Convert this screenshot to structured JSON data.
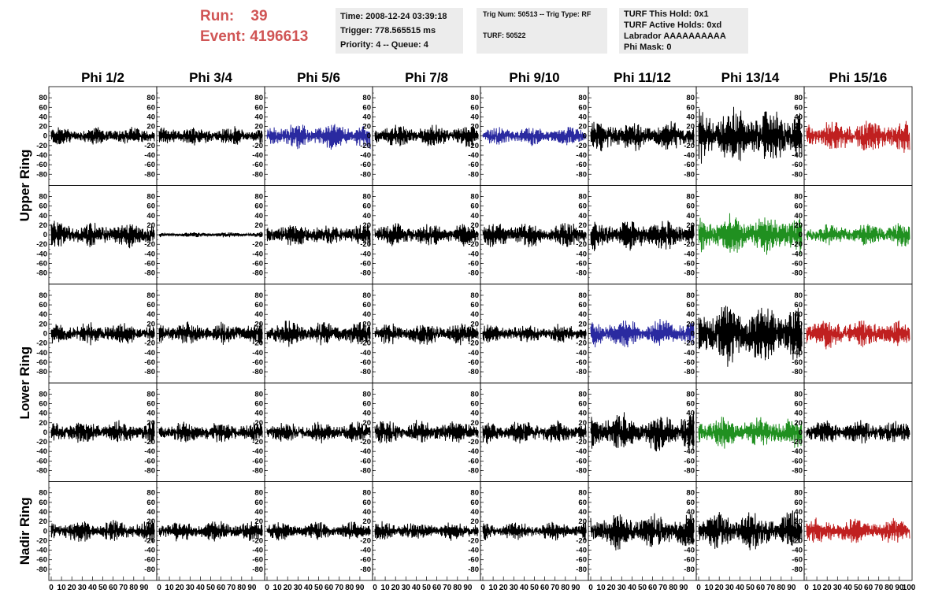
{
  "header": {
    "run_label": "Run:",
    "run_value": "39",
    "event_label": "Event:",
    "event_value": "4196613",
    "time_text": "Time: 2008-12-24 03:39:18",
    "trigger_text": "Trigger: 778.565515 ms",
    "priority_text": "Priority: 4 -- Queue: 4",
    "trig_num_text": "Trig Num: 50513 -- Trig Type: RF",
    "turf_text": "TURF: 50522",
    "turf_hold_text": "TURF This Hold: 0x1",
    "turf_active_text": "TURF Active Holds: 0xd",
    "labrador_text": "Labrador AAAAAAAAAA",
    "phi_mask_text": "Phi Mask: 0"
  },
  "chart_data": {
    "type": "line",
    "columns": [
      "Phi 1/2",
      "Phi 3/4",
      "Phi 5/6",
      "Phi 7/8",
      "Phi 9/10",
      "Phi 11/12",
      "Phi 13/14",
      "Phi 15/16"
    ],
    "ring_labels": [
      "Upper Ring",
      "Lower Ring",
      "Nadir Ring"
    ],
    "rows": 5,
    "ylim": [
      -100,
      100
    ],
    "yticks": [
      -80,
      -60,
      -40,
      -20,
      0,
      20,
      40,
      60,
      80
    ],
    "xlim": [
      0,
      100
    ],
    "xticks": [
      0,
      10,
      20,
      30,
      40,
      50,
      60,
      70,
      80,
      90
    ],
    "last_xtick": "100",
    "amplitudes": [
      [
        18,
        18,
        25,
        22,
        18,
        28,
        55,
        32
      ],
      [
        25,
        5,
        22,
        22,
        25,
        30,
        38,
        22
      ],
      [
        22,
        22,
        24,
        22,
        18,
        28,
        60,
        28
      ],
      [
        22,
        20,
        20,
        24,
        22,
        38,
        30,
        24
      ],
      [
        22,
        20,
        18,
        18,
        18,
        35,
        38,
        26
      ]
    ],
    "colors": [
      [
        "#000000",
        "#000000",
        "#2a2aa0",
        "#000000",
        "#2a2aa0",
        "#000000",
        "#000000",
        "#c02020"
      ],
      [
        "#000000",
        "#000000",
        "#000000",
        "#000000",
        "#000000",
        "#000000",
        "#209020",
        "#209020"
      ],
      [
        "#000000",
        "#000000",
        "#000000",
        "#000000",
        "#000000",
        "#2a2aa0",
        "#000000",
        "#c02020"
      ],
      [
        "#000000",
        "#000000",
        "#000000",
        "#000000",
        "#000000",
        "#000000",
        "#209020",
        "#000000"
      ],
      [
        "#000000",
        "#000000",
        "#000000",
        "#000000",
        "#000000",
        "#000000",
        "#000000",
        "#c02020"
      ]
    ]
  }
}
